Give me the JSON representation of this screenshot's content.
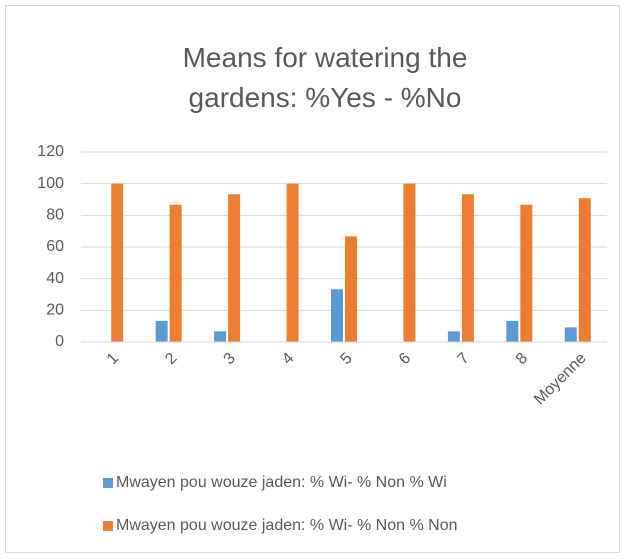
{
  "chart_data": {
    "type": "bar",
    "title": "Means for watering the gardens: %Yes - %No",
    "categories": [
      "1",
      "2",
      "3",
      "4",
      "5",
      "6",
      "7",
      "8",
      "Moyenne"
    ],
    "series": [
      {
        "name": "Mwayen pou wouze jaden: % Wi- % Non % Wi",
        "color": "#5b9bd5",
        "values": [
          0,
          13.3,
          6.7,
          0,
          33.3,
          0,
          6.7,
          13.3,
          9.2
        ]
      },
      {
        "name": "Mwayen pou wouze jaden: % Wi- % Non % Non",
        "color": "#ed7d31",
        "values": [
          100,
          86.7,
          93.3,
          100,
          66.7,
          100,
          93.3,
          86.7,
          90.8
        ]
      }
    ],
    "ylim": [
      0,
      120
    ],
    "yticks": [
      0,
      20,
      40,
      60,
      80,
      100,
      120
    ],
    "grid": true,
    "legend": "bottom"
  }
}
